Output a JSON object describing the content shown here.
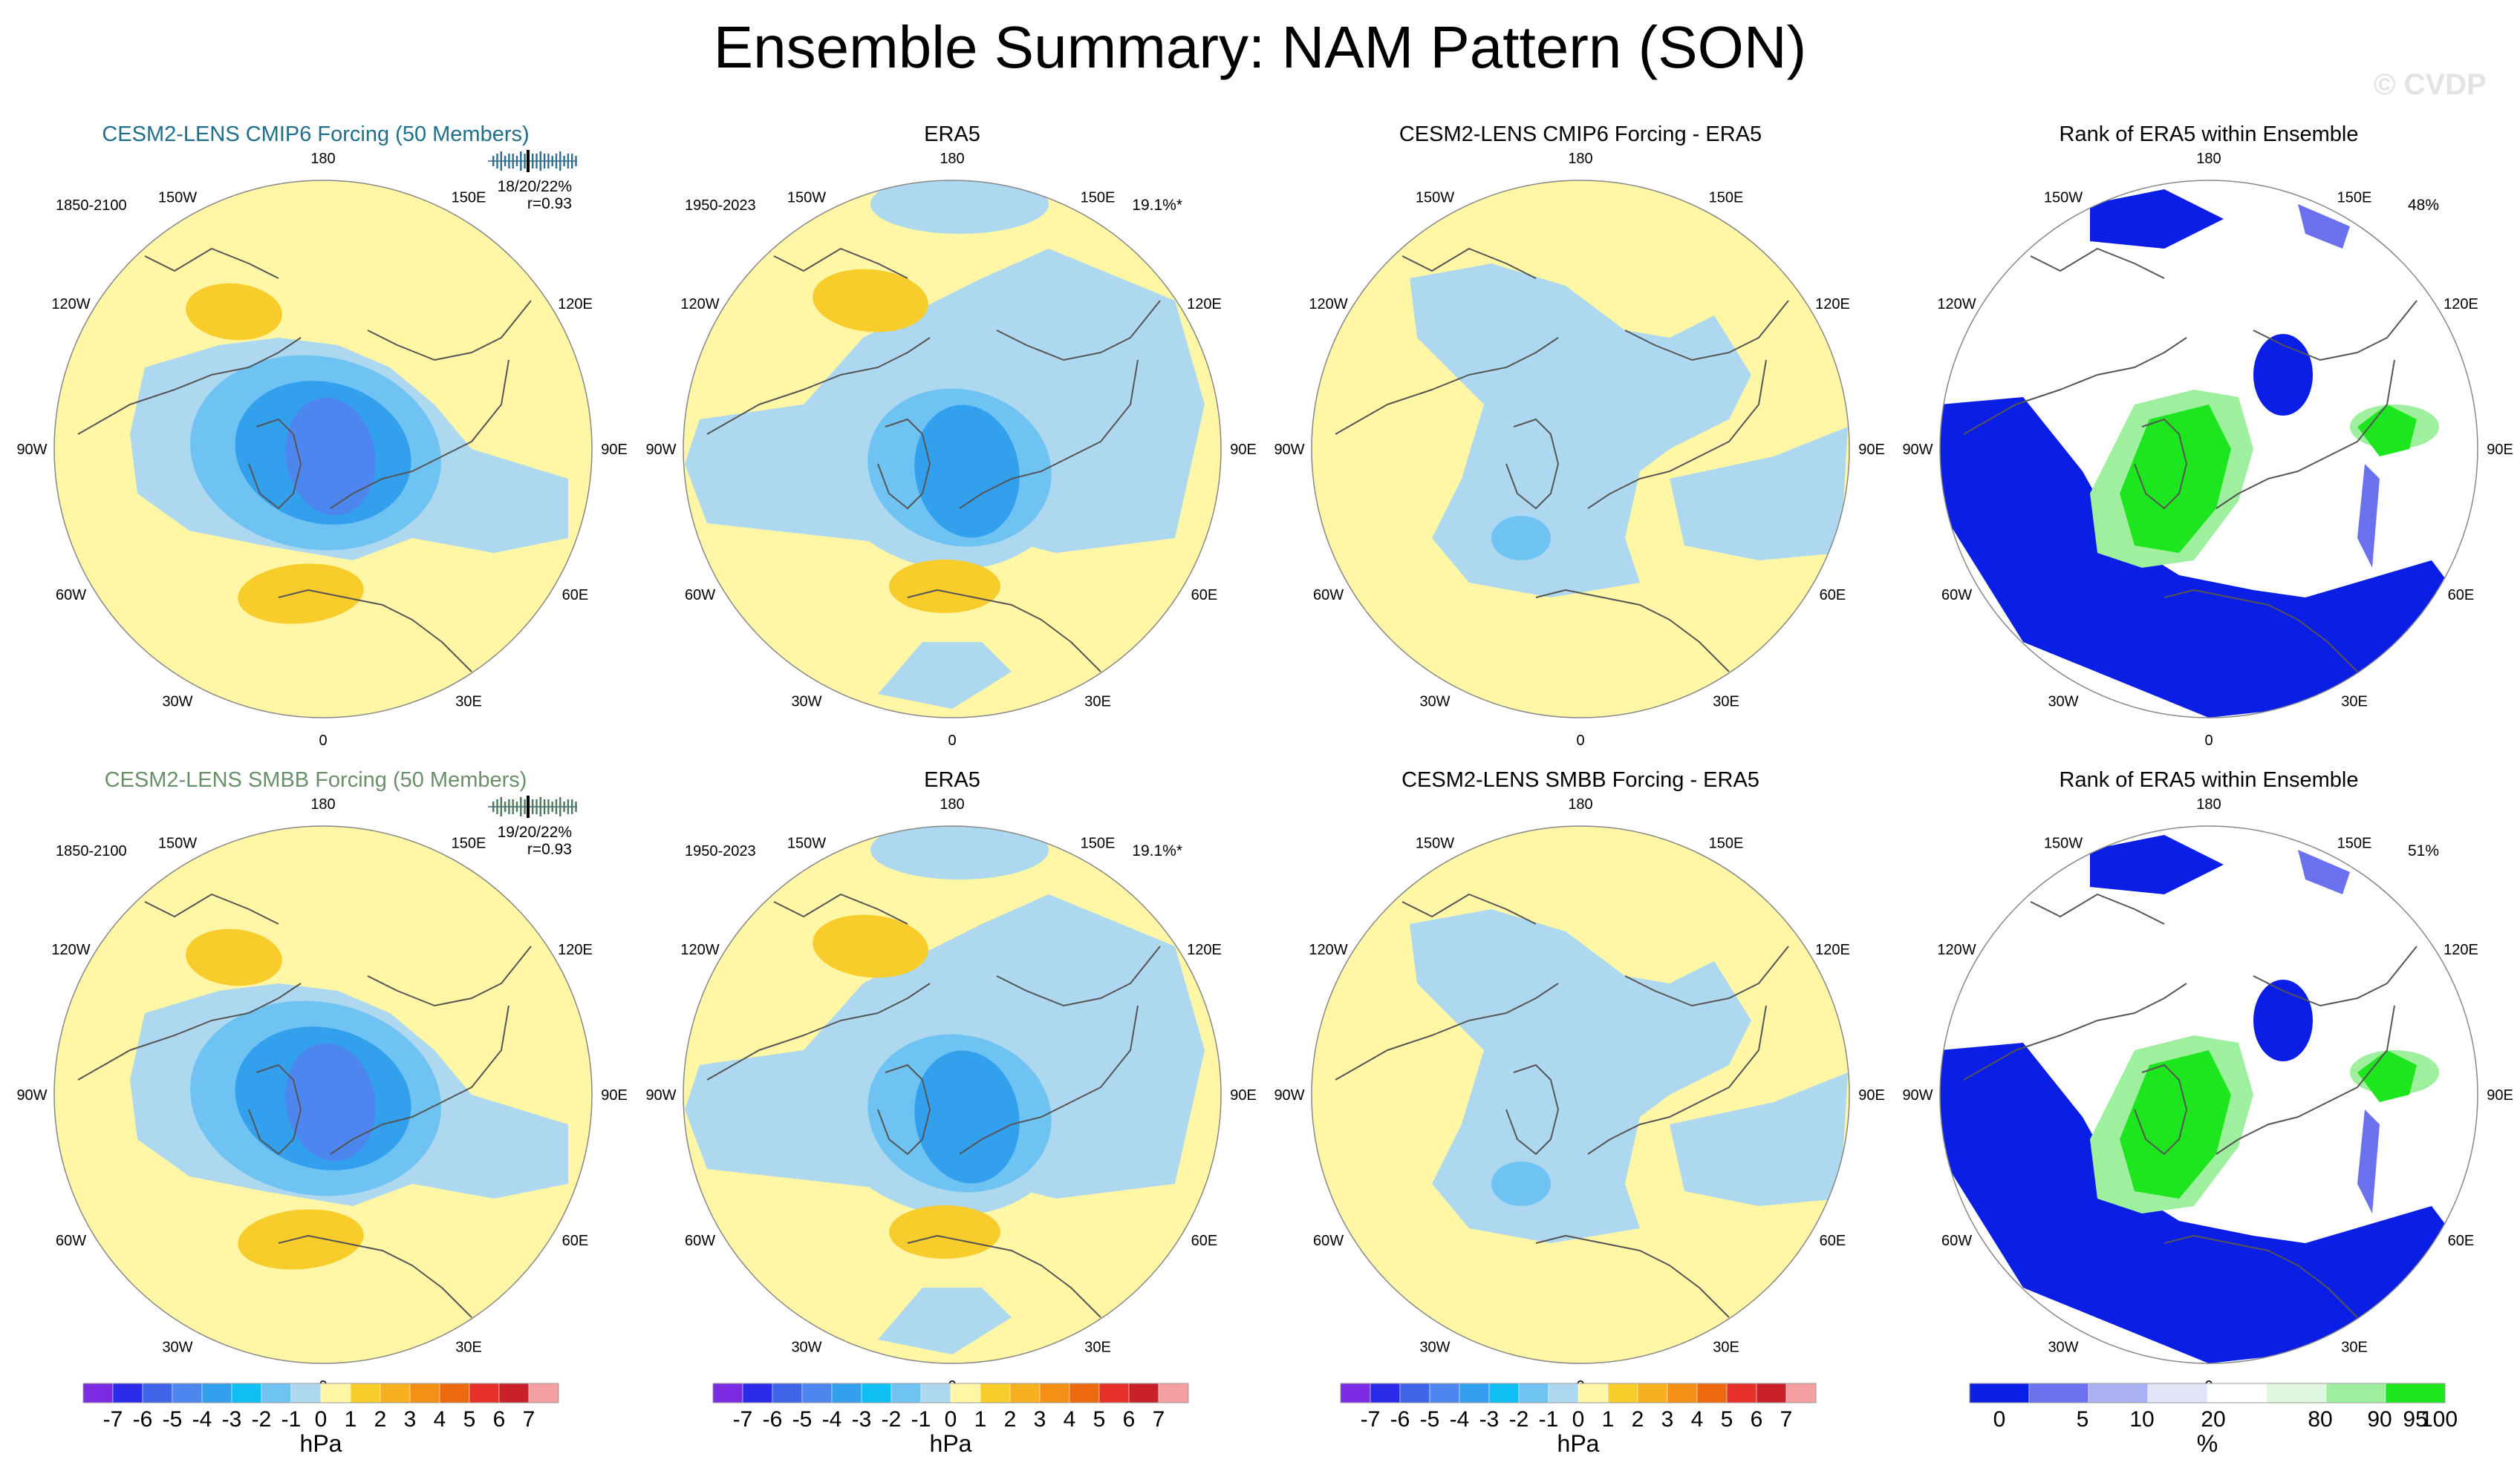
{
  "title": "Ensemble Summary: NAM Pattern (SON)",
  "watermark": "© CVDP",
  "colors": {
    "land_outline": "#555555",
    "ensemble_row1_title": "#1f6f8b",
    "ensemble_row2_title": "#6b8f6b"
  },
  "chart_data": {
    "type": "map",
    "description": "Polar stereographic NAM pattern panels (2 rows x 4 columns)",
    "lon_labels": [
      "180",
      "150E",
      "120E",
      "90E",
      "60E",
      "30E",
      "0",
      "30W",
      "60W",
      "90W",
      "120W",
      "150W"
    ],
    "panels": [
      {
        "row": 1,
        "col": 1,
        "kind": "anomaly",
        "title": "CESM2-LENS CMIP6 Forcing (50 Members)",
        "title_color": "#1f6f8b",
        "left_note": "1850-2100",
        "right_note": "18/20/22%",
        "right_note2": "r=0.93",
        "has_spread_bar": true
      },
      {
        "row": 1,
        "col": 2,
        "kind": "anomaly",
        "title": "ERA5",
        "left_note": "1950-2023",
        "right_note": "19.1%*"
      },
      {
        "row": 1,
        "col": 3,
        "kind": "difference",
        "title": "CESM2-LENS CMIP6 Forcing - ERA5"
      },
      {
        "row": 1,
        "col": 4,
        "kind": "rank",
        "title": "Rank of ERA5 within Ensemble",
        "right_note": "48%"
      },
      {
        "row": 2,
        "col": 1,
        "kind": "anomaly",
        "title": "CESM2-LENS SMBB Forcing (50 Members)",
        "title_color": "#6b8f6b",
        "left_note": "1850-2100",
        "right_note": "19/20/22%",
        "right_note2": "r=0.93",
        "has_spread_bar": true
      },
      {
        "row": 2,
        "col": 2,
        "kind": "anomaly",
        "title": "ERA5",
        "left_note": "1950-2023",
        "right_note": "19.1%*"
      },
      {
        "row": 2,
        "col": 3,
        "kind": "difference",
        "title": "CESM2-LENS SMBB Forcing - ERA5"
      },
      {
        "row": 2,
        "col": 4,
        "kind": "rank",
        "title": "Rank of ERA5 within Ensemble",
        "right_note": "51%"
      }
    ],
    "colorbars": [
      {
        "unit": "hPa",
        "labels": [
          "-7",
          "-6",
          "-5",
          "-4",
          "-3",
          "-2",
          "-1",
          "0",
          "1",
          "2",
          "3",
          "4",
          "5",
          "6",
          "7"
        ],
        "colors": [
          "#7b2be2",
          "#2a2ae8",
          "#3f64e8",
          "#4c86ee",
          "#33a0ee",
          "#10c0f5",
          "#6fc3f2",
          "#add8f0",
          "#fff7a6",
          "#f8cc2a",
          "#f7b020",
          "#f39015",
          "#ee6a10",
          "#e8302a",
          "#c8212a",
          "#f5a0a0"
        ]
      },
      {
        "unit": "hPa",
        "labels": [
          "-7",
          "-6",
          "-5",
          "-4",
          "-3",
          "-2",
          "-1",
          "0",
          "1",
          "2",
          "3",
          "4",
          "5",
          "6",
          "7"
        ],
        "colors": [
          "#7b2be2",
          "#2a2ae8",
          "#3f64e8",
          "#4c86ee",
          "#33a0ee",
          "#10c0f5",
          "#6fc3f2",
          "#add8f0",
          "#fff7a6",
          "#f8cc2a",
          "#f7b020",
          "#f39015",
          "#ee6a10",
          "#e8302a",
          "#c8212a",
          "#f5a0a0"
        ]
      },
      {
        "unit": "hPa",
        "labels": [
          "-7",
          "-6",
          "-5",
          "-4",
          "-3",
          "-2",
          "-1",
          "0",
          "1",
          "2",
          "3",
          "4",
          "5",
          "6",
          "7"
        ],
        "colors": [
          "#7b2be2",
          "#2a2ae8",
          "#3f64e8",
          "#4c86ee",
          "#33a0ee",
          "#10c0f5",
          "#6fc3f2",
          "#add8f0",
          "#fff7a6",
          "#f8cc2a",
          "#f7b020",
          "#f39015",
          "#ee6a10",
          "#e8302a",
          "#c8212a",
          "#f5a0a0"
        ]
      },
      {
        "unit": "%",
        "labels": [
          "0",
          "5",
          "10",
          "20",
          "80",
          "90",
          "95",
          "100"
        ],
        "colors": [
          "#0a1ee6",
          "#6b70ef",
          "#aab0f2",
          "#e2e4f8",
          "#ffffff",
          "#dff8df",
          "#9ef09e",
          "#1ee61e"
        ]
      }
    ]
  }
}
